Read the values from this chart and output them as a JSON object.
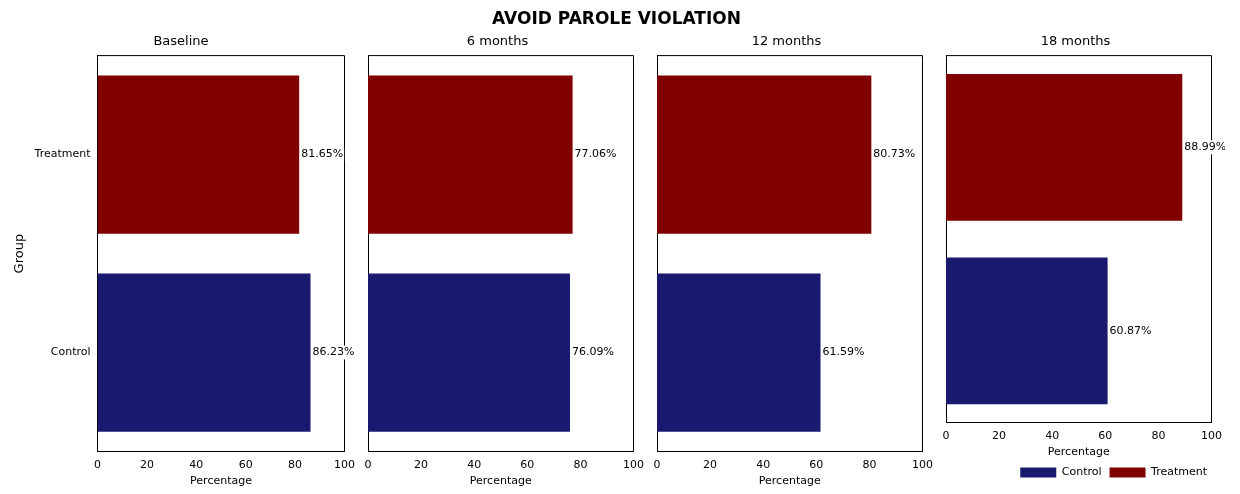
{
  "chart_data": [
    {
      "type": "bar",
      "subtitle": "Baseline",
      "orientation": "horizontal",
      "stacked": true,
      "categories": [
        "Treatment",
        "Control"
      ],
      "xlabel": "Percentage",
      "ylabel": "Group",
      "xlim": [
        0,
        100
      ],
      "xticks": [
        0,
        20,
        40,
        60,
        80,
        100
      ],
      "grid": false,
      "legend": false,
      "series": [
        {
          "color": "#191970",
          "values": [
            null,
            86.23
          ],
          "value_labels": [
            null,
            "86.23%"
          ]
        },
        {
          "color": "#800000",
          "values": [
            81.65,
            null
          ],
          "value_labels": [
            "81.65%",
            null
          ]
        }
      ]
    },
    {
      "type": "bar",
      "title": "AVOID PAROLE VIOLATION",
      "subtitle": "6 months",
      "orientation": "horizontal",
      "stacked": true,
      "categories": [
        null,
        null
      ],
      "xlabel": "Percentage",
      "xlim": [
        0,
        100
      ],
      "xticks": [
        0,
        20,
        40,
        60,
        80,
        100
      ],
      "grid": false,
      "legend": false,
      "tick_labels": "x",
      "series": [
        {
          "color": "#191970",
          "values": [
            null,
            76.09
          ],
          "value_labels": [
            null,
            "76.09%"
          ]
        },
        {
          "color": "#800000",
          "values": [
            77.06,
            null
          ],
          "value_labels": [
            "77.06%",
            null
          ]
        }
      ]
    },
    {
      "type": "bar",
      "subtitle": "12 months",
      "orientation": "horizontal",
      "stacked": true,
      "categories": [
        null,
        null
      ],
      "xlabel": "Percentage",
      "xlim": [
        0,
        100
      ],
      "xticks": [
        0,
        20,
        40,
        60,
        80,
        100
      ],
      "grid": false,
      "legend": false,
      "tick_labels": "x",
      "series": [
        {
          "color": "#191970",
          "values": [
            null,
            61.59
          ],
          "value_labels": [
            null,
            "61.59%"
          ]
        },
        {
          "color": "#800000",
          "values": [
            80.73,
            null
          ],
          "value_labels": [
            "80.73%",
            null
          ]
        }
      ]
    },
    {
      "type": "bar",
      "subtitle": "18 months",
      "orientation": "horizontal",
      "stacked": true,
      "categories": [
        null,
        null
      ],
      "xlabel": "Percentage",
      "xlim": [
        0,
        100
      ],
      "xticks": [
        0,
        20,
        40,
        60,
        80,
        100
      ],
      "grid": false,
      "legend": "bottom right",
      "tick_labels": "x",
      "series": [
        {
          "name": "Control",
          "color": "#191970",
          "values": [
            null,
            60.87
          ],
          "value_labels": [
            null,
            "60.87%"
          ]
        },
        {
          "name": "Treatment",
          "color": "#800000",
          "values": [
            88.99,
            null
          ],
          "value_labels": [
            "88.99%",
            null
          ]
        }
      ]
    }
  ]
}
